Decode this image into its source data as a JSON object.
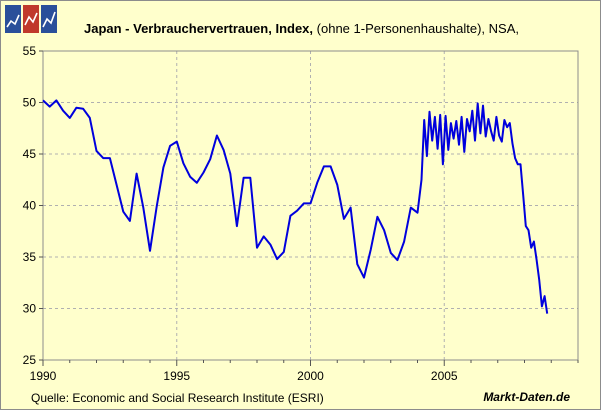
{
  "title_main": "Japan - Verbrauchervertrauen, Index,",
  "title_sub": "(ohne 1-Personenhaushalte), NSA,",
  "source": "Quelle:  Economic and Social Research Institute  (ESRI)",
  "brand": "Markt-Daten.de",
  "colors": {
    "background": "#ffffcc",
    "line": "#0000dd",
    "grid": "#b0b0b0",
    "logo": [
      "#2a4f9a",
      "#c0392b",
      "#2a4f9a"
    ]
  },
  "chart_data": {
    "type": "line",
    "title": "Japan - Verbrauchervertrauen, Index, (ohne 1-Personenhaushalte), NSA,",
    "xlabel": "",
    "ylabel": "",
    "xlim": [
      1990,
      2010
    ],
    "ylim": [
      25,
      55
    ],
    "x_ticks": [
      1990,
      1995,
      2000,
      2005
    ],
    "y_ticks": [
      25,
      30,
      35,
      40,
      45,
      50,
      55
    ],
    "grid": true,
    "series": [
      {
        "x": [
          1990.0,
          1990.25,
          1990.5,
          1990.75,
          1991.0,
          1991.25,
          1991.5,
          1991.75,
          1992.0,
          1992.25,
          1992.5,
          1992.75,
          1993.0,
          1993.25,
          1993.5,
          1993.75,
          1994.0,
          1994.25,
          1994.5,
          1994.75,
          1995.0,
          1995.25,
          1995.5,
          1995.75,
          1996.0,
          1996.25,
          1996.5,
          1996.75,
          1997.0,
          1997.25,
          1997.5,
          1997.75,
          1998.0,
          1998.25,
          1998.5,
          1998.75,
          1999.0,
          1999.25,
          1999.5,
          1999.75,
          2000.0,
          2000.25,
          2000.5,
          2000.75,
          2001.0,
          2001.25,
          2001.5,
          2001.75,
          2002.0,
          2002.25,
          2002.5,
          2002.75,
          2003.0,
          2003.25,
          2003.5,
          2003.75,
          2004.0,
          2004.15,
          2004.25,
          2004.35,
          2004.45,
          2004.55,
          2004.65,
          2004.75,
          2004.85,
          2004.95,
          2005.05,
          2005.15,
          2005.25,
          2005.35,
          2005.45,
          2005.55,
          2005.65,
          2005.75,
          2005.85,
          2005.95,
          2006.05,
          2006.15,
          2006.25,
          2006.35,
          2006.45,
          2006.55,
          2006.65,
          2006.75,
          2006.85,
          2006.95,
          2007.05,
          2007.15,
          2007.25,
          2007.35,
          2007.45,
          2007.55,
          2007.65,
          2007.75,
          2007.85,
          2007.95,
          2008.05,
          2008.15,
          2008.25,
          2008.35,
          2008.45,
          2008.55,
          2008.65,
          2008.75,
          2008.85
        ],
        "y": [
          50.2,
          49.6,
          50.2,
          49.2,
          48.5,
          49.5,
          49.4,
          48.5,
          45.3,
          44.6,
          44.6,
          42.0,
          39.4,
          38.5,
          43.1,
          39.8,
          35.6,
          39.9,
          43.7,
          45.8,
          46.2,
          44.1,
          42.8,
          42.2,
          43.2,
          44.5,
          46.8,
          45.4,
          43.1,
          38.0,
          42.7,
          42.7,
          35.9,
          37.0,
          36.2,
          34.8,
          35.5,
          39.0,
          39.5,
          40.2,
          40.2,
          42.2,
          43.8,
          43.8,
          42.0,
          38.7,
          39.8,
          34.3,
          33.0,
          35.7,
          38.9,
          37.6,
          35.4,
          34.7,
          36.5,
          39.8,
          39.3,
          42.5,
          48.3,
          44.8,
          49.1,
          46.3,
          48.6,
          45.5,
          48.8,
          44.0,
          48.7,
          45.4,
          48.0,
          46.5,
          48.2,
          45.9,
          48.6,
          45.2,
          48.4,
          47.2,
          49.2,
          46.3,
          49.9,
          47.0,
          49.7,
          46.7,
          48.4,
          47.2,
          46.3,
          48.6,
          46.8,
          46.2,
          48.3,
          47.6,
          48.0,
          46.0,
          44.6,
          44.0,
          44.0,
          41.0,
          38.0,
          37.6,
          35.9,
          36.5,
          34.8,
          32.8,
          30.2,
          31.2,
          29.5
        ]
      }
    ]
  }
}
